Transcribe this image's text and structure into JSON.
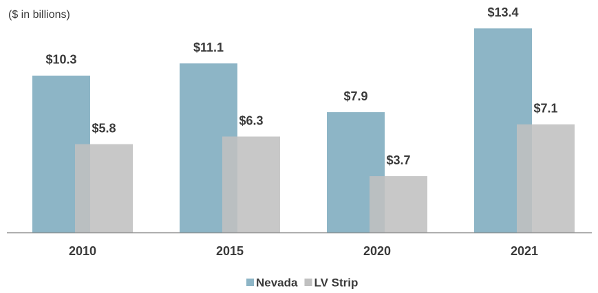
{
  "chart_data": {
    "type": "bar",
    "subtitle": "($ in billions)",
    "categories": [
      "2010",
      "2015",
      "2020",
      "2021"
    ],
    "series": [
      {
        "name": "Nevada",
        "color": "#8db5c6",
        "values": [
          10.3,
          11.1,
          7.9,
          13.4
        ],
        "value_labels": [
          "$10.3",
          "$11.1",
          "$7.9",
          "$13.4"
        ]
      },
      {
        "name": "LV Strip",
        "color": "#c0c0c0",
        "values": [
          5.8,
          6.3,
          3.7,
          7.1
        ],
        "value_labels": [
          "$5.8",
          "$6.3",
          "$3.7",
          "$7.1"
        ]
      }
    ],
    "ylim": [
      0,
      14
    ],
    "legend": "bottom"
  }
}
